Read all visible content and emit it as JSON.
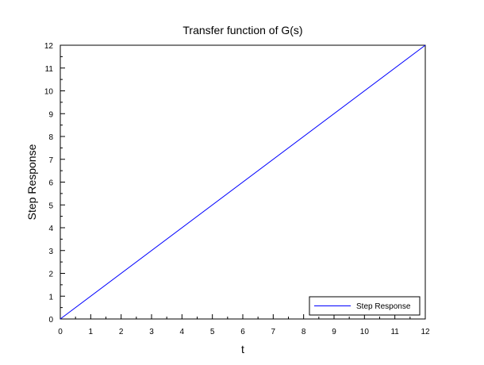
{
  "chart_data": {
    "type": "line",
    "title": "Transfer function of G(s)",
    "xlabel": "t",
    "ylabel": "Step Response",
    "xlim": [
      0,
      12
    ],
    "ylim": [
      0,
      12
    ],
    "xticks": [
      0,
      1,
      2,
      3,
      4,
      5,
      6,
      7,
      8,
      9,
      10,
      11,
      12
    ],
    "yticks": [
      0,
      1,
      2,
      3,
      4,
      5,
      6,
      7,
      8,
      9,
      10,
      11,
      12
    ],
    "grid": false,
    "legend_position": "bottom-right",
    "series": [
      {
        "name": "Step Response",
        "color": "#0000ff",
        "x": [
          0,
          12
        ],
        "y": [
          0,
          12
        ]
      }
    ]
  }
}
